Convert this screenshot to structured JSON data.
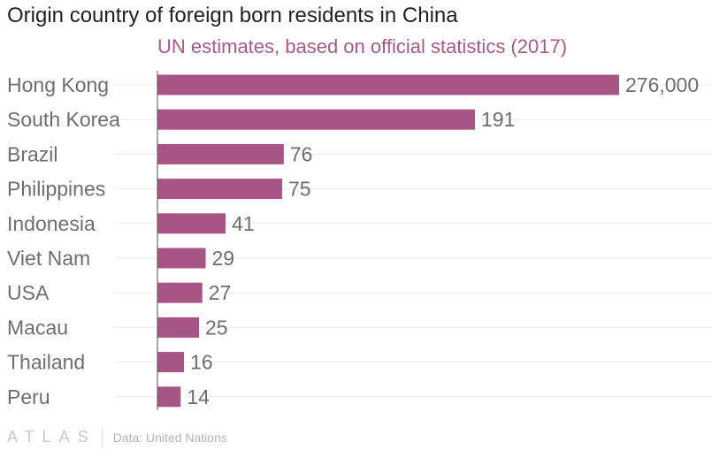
{
  "brand": {
    "name": "ATLAS",
    "source": "Data: United Nations"
  },
  "colors": {
    "bar": "#a65585",
    "subtitle": "#a75a8a",
    "grid": "#ececec",
    "axis": "#555555",
    "label": "#6e6e6e"
  },
  "chart_data": {
    "type": "bar",
    "orientation": "horizontal",
    "title": "Origin country of foreign born residents in China",
    "subtitle": "UN estimates, based on official statistics (2017)",
    "categories": [
      "Hong Kong",
      "South Korea",
      "Brazil",
      "Philippines",
      "Indonesia",
      "Viet Nam",
      "USA",
      "Macau",
      "Thailand",
      "Peru"
    ],
    "values": [
      276000,
      191,
      76,
      75,
      41,
      29,
      27,
      25,
      16,
      14
    ],
    "value_labels": [
      "276,000",
      "191",
      "76",
      "75",
      "41",
      "29",
      "27",
      "25",
      "16",
      "14"
    ],
    "xlabel": "",
    "ylabel": "",
    "note": "Bars are not drawn to a single linear scale in the original graphic",
    "grid": true,
    "legend": "none"
  }
}
